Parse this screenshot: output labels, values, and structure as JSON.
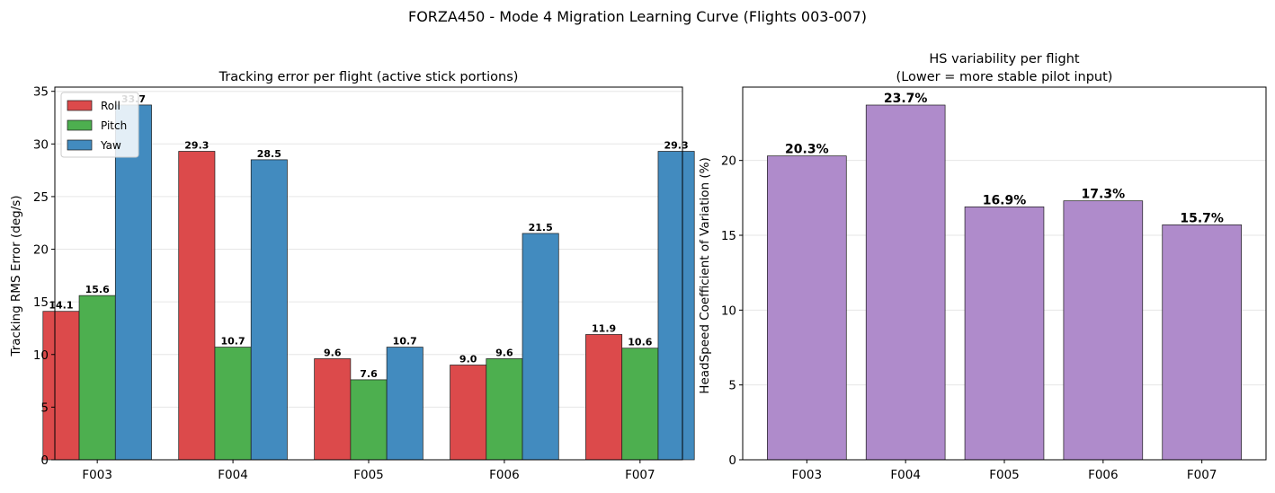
{
  "figure": {
    "suptitle": "FORZA450 - Mode 4 Migration Learning Curve (Flights 003-007)"
  },
  "chart_data": [
    {
      "type": "bar",
      "title": "Tracking error per flight (active stick portions)",
      "xlabel": "",
      "ylabel": "Tracking RMS Error (deg/s)",
      "categories": [
        "F003",
        "F004",
        "F005",
        "F006",
        "F007"
      ],
      "series": [
        {
          "name": "Roll",
          "color": "#dc4a4b",
          "values": [
            14.1,
            29.3,
            9.6,
            9.0,
            11.9
          ],
          "labels": [
            "14.1",
            "29.3",
            "9.6",
            "9.0",
            "11.9"
          ]
        },
        {
          "name": "Pitch",
          "color": "#4daf4f",
          "values": [
            15.6,
            10.7,
            7.6,
            9.6,
            10.6
          ],
          "labels": [
            "15.6",
            "10.7",
            "7.6",
            "9.6",
            "10.6"
          ]
        },
        {
          "name": "Yaw",
          "color": "#428bbf",
          "values": [
            33.7,
            28.5,
            10.7,
            21.5,
            29.3
          ],
          "labels": [
            "33.7",
            "28.5",
            "10.7",
            "21.5",
            "29.3"
          ]
        }
      ],
      "ylim": [
        0,
        35.4
      ],
      "yticks": [
        0,
        5,
        10,
        15,
        20,
        25,
        30,
        35
      ],
      "ytick_labels": [
        "0",
        "5",
        "10",
        "15",
        "20",
        "25",
        "30",
        "35"
      ],
      "grid": "y",
      "legend": "top-left"
    },
    {
      "type": "bar",
      "title": "HS variability per flight",
      "subtitle": "(Lower = more stable pilot input)",
      "xlabel": "",
      "ylabel": "HeadSpeed Coefficient of Variation (%)",
      "categories": [
        "F003",
        "F004",
        "F005",
        "F006",
        "F007"
      ],
      "series": [
        {
          "color": "#af8bcb",
          "values": [
            20.3,
            23.7,
            16.9,
            17.3,
            15.7
          ],
          "labels": [
            "20.3%",
            "23.7%",
            "16.9%",
            "17.3%",
            "15.7%"
          ]
        }
      ],
      "ylim": [
        0,
        24.9
      ],
      "yticks": [
        0,
        5,
        10,
        15,
        20
      ],
      "ytick_labels": [
        "0",
        "5",
        "10",
        "15",
        "20"
      ],
      "grid": "y",
      "legend": "none"
    }
  ]
}
